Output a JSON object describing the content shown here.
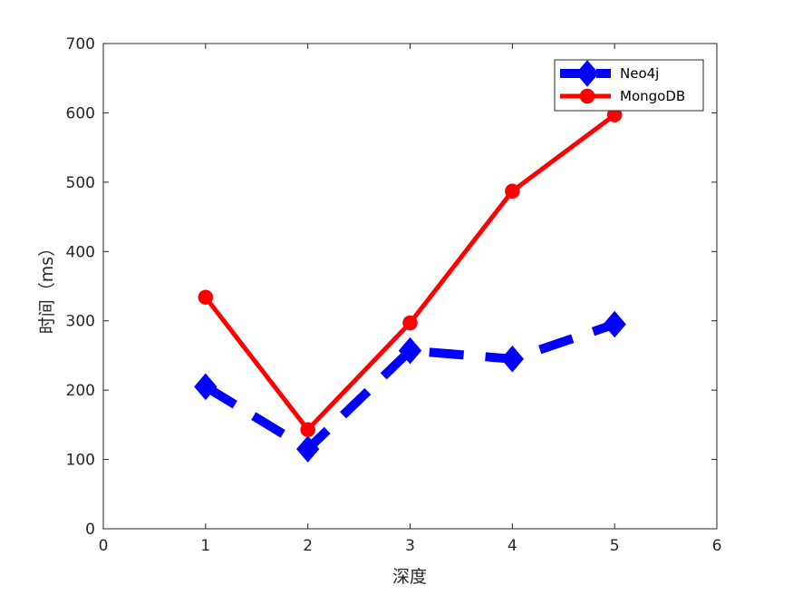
{
  "chart_data": {
    "type": "line",
    "title": "",
    "xlabel": "深度",
    "ylabel": "时间（ms）",
    "xlim": [
      0,
      6
    ],
    "ylim": [
      0,
      700
    ],
    "x_ticks": [
      0,
      1,
      2,
      3,
      4,
      5,
      6
    ],
    "y_ticks": [
      0,
      100,
      200,
      300,
      400,
      500,
      600,
      700
    ],
    "grid": false,
    "legend_position": "top-right",
    "x": [
      1,
      2,
      3,
      4,
      5
    ],
    "series": [
      {
        "name": "Neo4j",
        "values": [
          205,
          115,
          257,
          245,
          295
        ],
        "color": "#0000ff",
        "line_style": "dashed",
        "marker": "diamond"
      },
      {
        "name": "MongoDB",
        "values": [
          334,
          143,
          297,
          487,
          597
        ],
        "color": "#ff0000",
        "line_style": "solid",
        "marker": "circle"
      }
    ]
  }
}
